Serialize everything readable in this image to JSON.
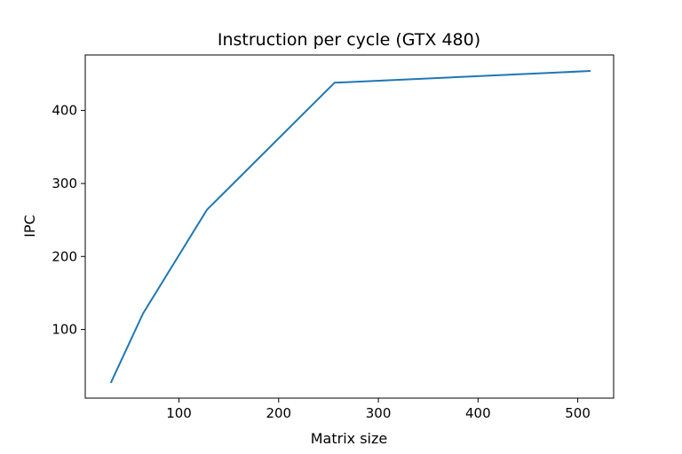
{
  "chart_data": {
    "type": "line",
    "title": "Instruction per cycle (GTX 480)",
    "xlabel": "Matrix size",
    "ylabel": "IPC",
    "xlim": [
      6.0,
      536.0
    ],
    "ylim": [
      6.0,
      476.0
    ],
    "xticks": [
      100,
      200,
      300,
      400,
      500
    ],
    "yticks": [
      100,
      200,
      300,
      400
    ],
    "grid": false,
    "series": [
      {
        "color": "#1f77b4",
        "x": [
          32,
          64,
          128,
          256,
          512
        ],
        "y": [
          28,
          122,
          264,
          438,
          454
        ]
      }
    ]
  }
}
